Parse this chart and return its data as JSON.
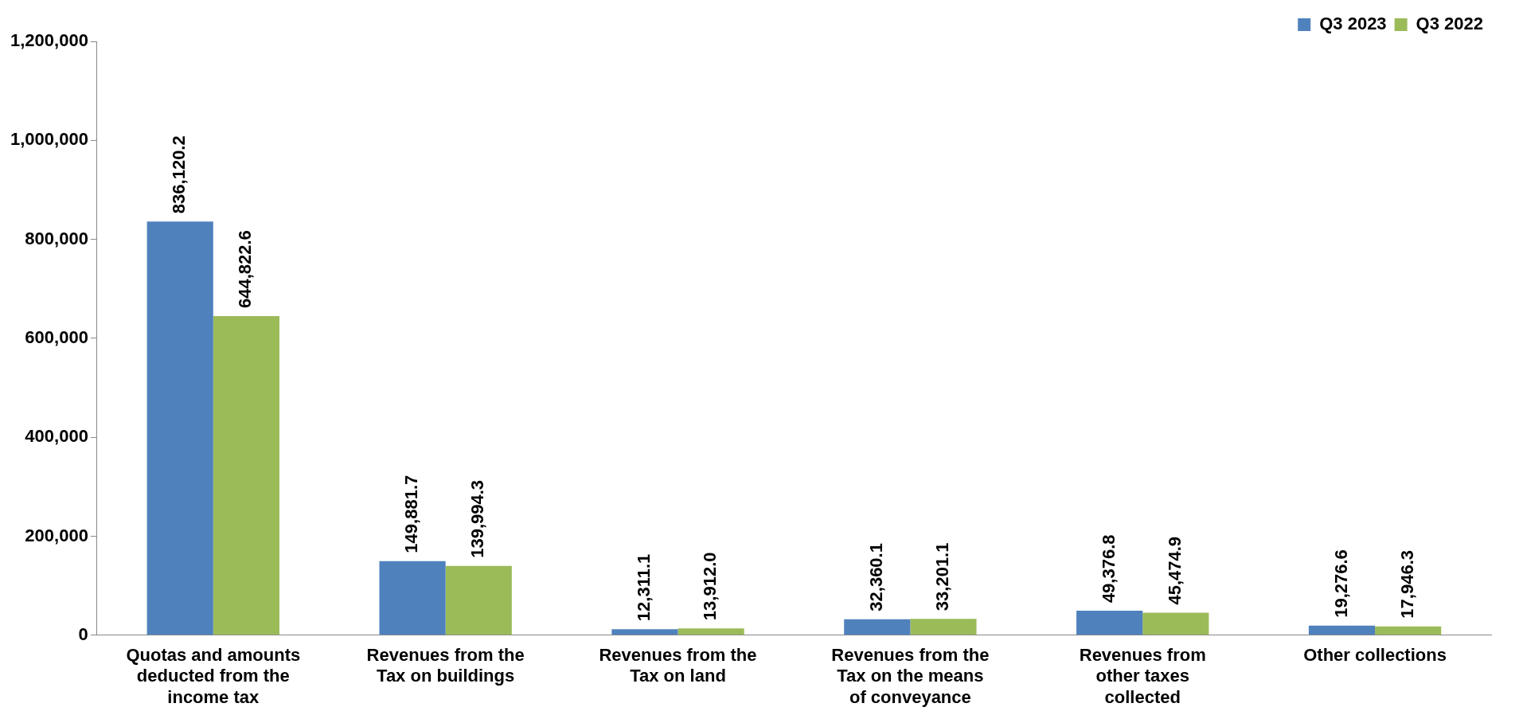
{
  "chart_data": {
    "type": "bar",
    "categories": [
      "Quotas and amounts deducted from the income tax",
      "Revenues from the Tax on buildings",
      "Revenues from the Tax on land",
      "Revenues from the Tax on the means of conveyance",
      "Revenues from other taxes collected",
      "Other collections"
    ],
    "series": [
      {
        "name": "Q3 2023",
        "color": "#4f81bd",
        "values": [
          836120.2,
          149881.7,
          12311.1,
          32360.1,
          49376.8,
          19276.6
        ],
        "value_labels": [
          "836,120.2",
          "149,881.7",
          "12,311.1",
          "32,360.1",
          "49,376.8",
          "19,276.6"
        ]
      },
      {
        "name": "Q3 2022",
        "color": "#9bbb59",
        "values": [
          644822.6,
          139994.3,
          13912.0,
          33201.1,
          45474.9,
          17946.3
        ],
        "value_labels": [
          "644,822.6",
          "139,994.3",
          "13,912.0",
          "33,201.1",
          "45,474.9",
          "17,946.3"
        ]
      }
    ],
    "ylim": [
      0,
      1200000
    ],
    "yticks": [
      0,
      {
        "value": 200000,
        "label": "200,000"
      },
      {
        "value": 400000,
        "label": "400,000"
      },
      {
        "value": 600000,
        "label": "600,000"
      },
      {
        "value": 800000,
        "label": "800,000"
      },
      {
        "value": 1000000,
        "label": "1,000,000"
      },
      {
        "value": 1200000,
        "label": "1,200,000"
      }
    ],
    "grid": false,
    "legend": "top right"
  }
}
